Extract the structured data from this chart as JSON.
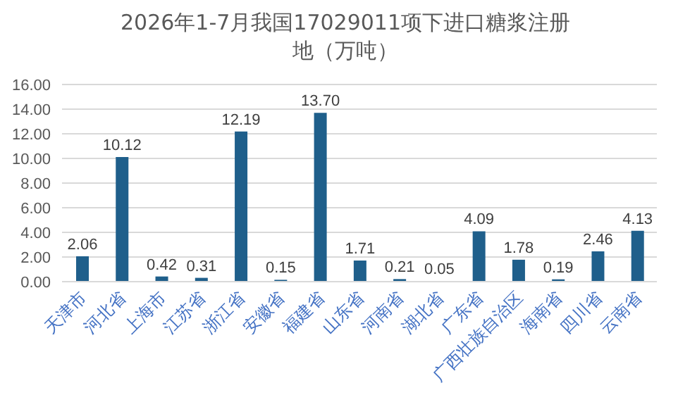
{
  "chart_data": {
    "type": "bar",
    "title": "2026年1-7月我国17029011项下进口糖浆注册地（万吨）",
    "categories": [
      "天津市",
      "河北省",
      "上海市",
      "江苏省",
      "浙江省",
      "安徽省",
      "福建省",
      "山东省",
      "河南省",
      "湖北省",
      "广东省",
      "广西壮族自治区",
      "海南省",
      "四川省",
      "云南省"
    ],
    "values": [
      2.06,
      10.12,
      0.42,
      0.31,
      12.19,
      0.15,
      13.7,
      1.71,
      0.21,
      0.05,
      4.09,
      1.78,
      0.19,
      2.46,
      4.13
    ],
    "value_labels": [
      "2.06",
      "10.12",
      "0.42",
      "0.31",
      "12.19",
      "0.15",
      "13.70",
      "1.71",
      "0.21",
      "0.05",
      "4.09",
      "1.78",
      "0.19",
      "2.46",
      "4.13"
    ],
    "color": "#1f5f8b",
    "ylim": [
      0,
      16
    ],
    "yticks": [
      {
        "value": 0,
        "label": "0.00"
      },
      {
        "value": 2,
        "label": "2.00"
      },
      {
        "value": 4,
        "label": "4.00"
      },
      {
        "value": 6,
        "label": "6.00"
      },
      {
        "value": 8,
        "label": "8.00"
      },
      {
        "value": 10,
        "label": "10.00"
      },
      {
        "value": 12,
        "label": "12.00"
      },
      {
        "value": 14,
        "label": "14.00"
      },
      {
        "value": 16,
        "label": "16.00"
      }
    ],
    "grid": "y"
  }
}
